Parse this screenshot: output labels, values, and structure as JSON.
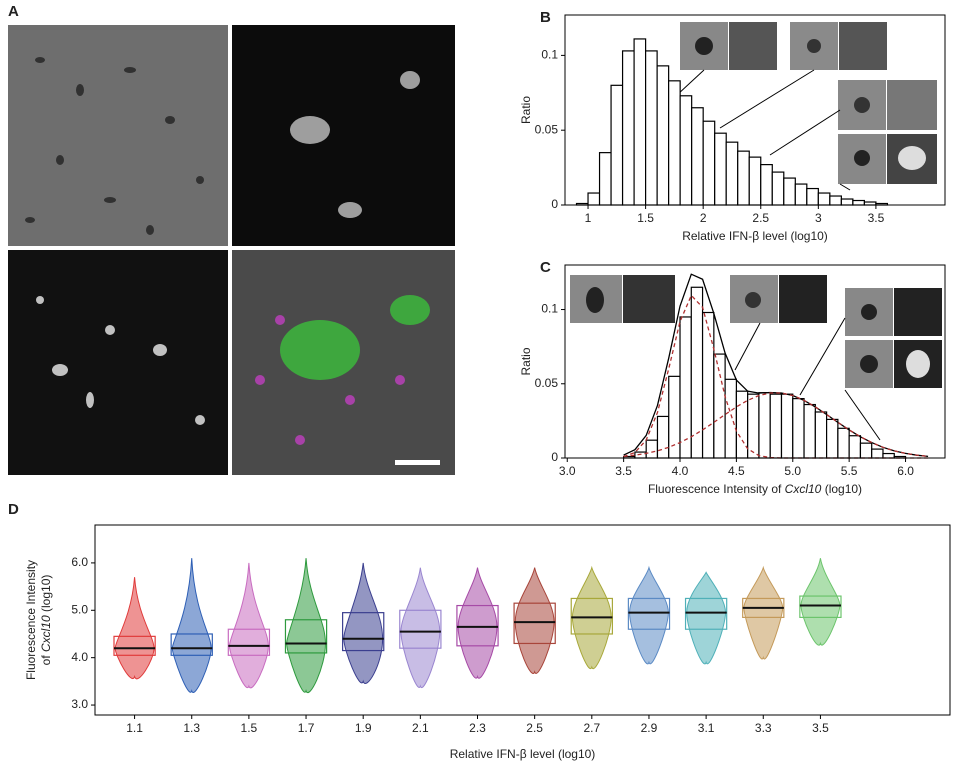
{
  "panel_labels": [
    "A",
    "B",
    "C",
    "D"
  ],
  "chart_data": [
    {
      "type": "histogram",
      "xlabel_parts": [
        "Relative IFN-β level (log10)"
      ],
      "ylabel_parts": [
        "Ratio"
      ],
      "bins": [
        0.9,
        1.0,
        1.1,
        1.2,
        1.3,
        1.4,
        1.5,
        1.6,
        1.7,
        1.8,
        1.9,
        2.0,
        2.1,
        2.2,
        2.3,
        2.4,
        2.5,
        2.6,
        2.7,
        2.8,
        2.9,
        3.0,
        3.1,
        3.2,
        3.3,
        3.4,
        3.5,
        3.6
      ],
      "values": [
        0.001,
        0.008,
        0.035,
        0.08,
        0.103,
        0.111,
        0.103,
        0.093,
        0.083,
        0.073,
        0.065,
        0.056,
        0.048,
        0.042,
        0.036,
        0.032,
        0.027,
        0.022,
        0.018,
        0.014,
        0.011,
        0.008,
        0.006,
        0.004,
        0.003,
        0.002,
        0.001
      ],
      "color": "#ffffff",
      "edge": "#000000",
      "xlim": [
        0.8,
        4.1
      ],
      "ylim": [
        0,
        0.127
      ],
      "xticks": [
        1,
        1.5,
        2,
        2.5,
        3,
        3.5
      ],
      "yticks": [
        0,
        0.05,
        0.1
      ]
    },
    {
      "type": "histogram",
      "xlabel_parts": [
        "Fluorescence Intensity of ",
        "Cxcl10",
        " (log10)"
      ],
      "ylabel_parts": [
        "Ratio"
      ],
      "bins": [
        3.5,
        3.6,
        3.7,
        3.8,
        3.9,
        4.0,
        4.1,
        4.2,
        4.3,
        4.4,
        4.5,
        4.6,
        4.7,
        4.8,
        4.9,
        5.0,
        5.1,
        5.2,
        5.3,
        5.4,
        5.5,
        5.6,
        5.7,
        5.8,
        5.9,
        6.0
      ],
      "values": [
        0.001,
        0.004,
        0.012,
        0.028,
        0.055,
        0.095,
        0.115,
        0.098,
        0.07,
        0.053,
        0.045,
        0.043,
        0.044,
        0.043,
        0.043,
        0.04,
        0.036,
        0.031,
        0.026,
        0.02,
        0.015,
        0.01,
        0.006,
        0.003,
        0.001
      ],
      "color": "#ffffff",
      "edge": "#000000",
      "curve_x": [
        3.5,
        3.6,
        3.7,
        3.8,
        3.9,
        4.0,
        4.1,
        4.2,
        4.3,
        4.4,
        4.5,
        4.6,
        4.7,
        4.8,
        4.9,
        5.0,
        5.1,
        5.2,
        5.3,
        5.4,
        5.5,
        5.6,
        5.7,
        5.8,
        5.9,
        6.0,
        6.1,
        6.2
      ],
      "curves": [
        {
          "color": "#000000",
          "dashed": false,
          "values": [
            0.002,
            0.0056,
            0.0152,
            0.0354,
            0.0673,
            0.1023,
            0.1238,
            0.1204,
            0.0974,
            0.0706,
            0.0525,
            0.045,
            0.0437,
            0.0441,
            0.0438,
            0.0421,
            0.0388,
            0.0344,
            0.0293,
            0.024,
            0.0189,
            0.0143,
            0.0104,
            0.0072,
            0.0048,
            0.0031,
            0.0019,
            0.0011
          ]
        },
        {
          "color": "#b03030",
          "dashed": true,
          "values": [
            0.0009,
            0.0037,
            0.0121,
            0.0306,
            0.0601,
            0.0919,
            0.1095,
            0.1015,
            0.0734,
            0.0413,
            0.0181,
            0.0062,
            0.0016,
            0.0003,
            0,
            0,
            0,
            0,
            0,
            0,
            0,
            0,
            0,
            0,
            0,
            0,
            0,
            0
          ]
        },
        {
          "color": "#b03030",
          "dashed": true,
          "values": [
            0.0011,
            0.0019,
            0.0031,
            0.0048,
            0.0072,
            0.0104,
            0.0143,
            0.0189,
            0.024,
            0.0293,
            0.0344,
            0.0388,
            0.0421,
            0.0438,
            0.0438,
            0.0421,
            0.0388,
            0.0344,
            0.0293,
            0.024,
            0.0189,
            0.0143,
            0.0104,
            0.0072,
            0.0048,
            0.0031,
            0.0019,
            0.0011
          ]
        }
      ],
      "xlim": [
        2.98,
        6.35
      ],
      "ylim": [
        0,
        0.13
      ],
      "xticks": [
        {
          "value": 3,
          "label": "3.0"
        },
        3.5,
        {
          "value": 4,
          "label": "4.0"
        },
        4.5,
        {
          "value": 5,
          "label": "5.0"
        },
        5.5,
        {
          "value": 6,
          "label": "6.0"
        }
      ],
      "yticks": [
        0,
        0.05,
        0.1
      ]
    },
    {
      "type": "box",
      "xlabel_parts": [
        "Relative IFN-β level (log10)"
      ],
      "ylabel_parts": [
        "Fluorescence Intensity",
        "of ",
        "Cxcl10",
        " (log10)"
      ],
      "categories": [
        "1.1",
        "1.3",
        "1.5",
        "1.7",
        "1.9",
        "2.1",
        "2.3",
        "2.5",
        "2.7",
        "2.9",
        "3.1",
        "3.3",
        "3.5"
      ],
      "colors": [
        "#e03b3b",
        "#2e5fb5",
        "#c86cc0",
        "#2e9a3e",
        "#3b3f8f",
        "#9a86d0",
        "#a64aa6",
        "#a8453a",
        "#a8a83a",
        "#5b8ac4",
        "#4fb0b8",
        "#c49a5a",
        "#6cc46c"
      ],
      "median": [
        4.2,
        4.2,
        4.25,
        4.3,
        4.4,
        4.55,
        4.65,
        4.75,
        4.85,
        4.95,
        4.95,
        5.05,
        5.1
      ],
      "q1": [
        4.05,
        4.05,
        4.05,
        4.1,
        4.15,
        4.2,
        4.25,
        4.3,
        4.5,
        4.6,
        4.6,
        4.85,
        4.85
      ],
      "q3": [
        4.45,
        4.5,
        4.6,
        4.8,
        4.95,
        5.0,
        5.1,
        5.15,
        5.25,
        5.25,
        5.25,
        5.25,
        5.3
      ],
      "min": [
        3.6,
        3.3,
        3.4,
        3.3,
        3.5,
        3.4,
        3.6,
        3.7,
        3.8,
        3.9,
        3.9,
        4.0,
        4.3
      ],
      "max": [
        5.7,
        6.1,
        6.0,
        6.1,
        6.0,
        5.9,
        5.9,
        5.9,
        5.9,
        5.9,
        5.8,
        5.9,
        6.1
      ],
      "ylim": [
        2.79,
        6.8
      ],
      "yticks": [
        {
          "value": 3,
          "label": "3.0"
        },
        {
          "value": 4,
          "label": "4.0"
        },
        {
          "value": 5,
          "label": "5.0"
        },
        {
          "value": 6,
          "label": "6.0"
        }
      ]
    }
  ]
}
